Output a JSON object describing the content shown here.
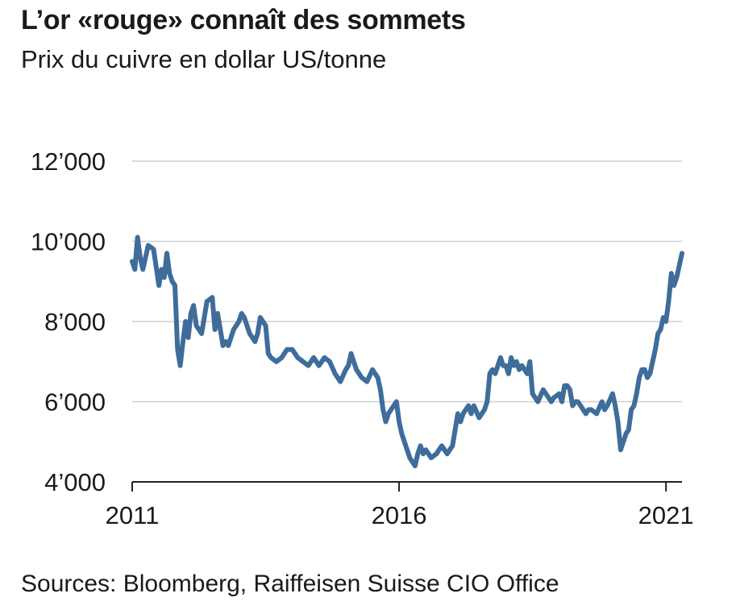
{
  "title": "L’or «rouge» connaît des sommets",
  "subtitle": "Prix du cuivre en dollar US/tonne",
  "source": "Sources: Bloomberg, Raiffeisen Suisse CIO Office",
  "colors": {
    "line": "#3f6d9b",
    "grid": "#cfcfcf",
    "axis": "#222222"
  },
  "chart_data": {
    "type": "line",
    "title": "L’or «rouge» connaît des sommets",
    "subtitle": "Prix du cuivre en dollar US/tonne",
    "xlabel": "",
    "ylabel": "",
    "x_ticks": [
      {
        "value": 2011,
        "label": "2011"
      },
      {
        "value": 2016,
        "label": "2016"
      },
      {
        "value": 2021,
        "label": "2021"
      }
    ],
    "y_ticks": [
      {
        "value": 4000,
        "label": "4’000"
      },
      {
        "value": 6000,
        "label": "6’000"
      },
      {
        "value": 8000,
        "label": "8’000"
      },
      {
        "value": 10000,
        "label": "10’000"
      },
      {
        "value": 12000,
        "label": "12’000"
      }
    ],
    "xlim": [
      2011,
      2021.3
    ],
    "ylim": [
      4000,
      12000
    ],
    "grid": "horizontal",
    "series": [
      {
        "x": [
          2011.0,
          2011.05,
          2011.1,
          2011.15,
          2011.2,
          2011.3,
          2011.4,
          2011.5,
          2011.55,
          2011.6,
          2011.65,
          2011.7,
          2011.75,
          2011.8,
          2011.85,
          2011.9,
          2011.95,
          2012.0,
          2012.05,
          2012.1,
          2012.15,
          2012.2,
          2012.3,
          2012.4,
          2012.5,
          2012.55,
          2012.6,
          2012.65,
          2012.7,
          2012.75,
          2012.8,
          2012.9,
          2013.0,
          2013.05,
          2013.1,
          2013.2,
          2013.3,
          2013.35,
          2013.4,
          2013.45,
          2013.5,
          2013.55,
          2013.6,
          2013.7,
          2013.8,
          2013.9,
          2014.0,
          2014.1,
          2014.2,
          2014.3,
          2014.4,
          2014.5,
          2014.55,
          2014.6,
          2014.7,
          2014.8,
          2014.9,
          2015.0,
          2015.05,
          2015.1,
          2015.2,
          2015.3,
          2015.4,
          2015.5,
          2015.55,
          2015.6,
          2015.65,
          2015.7,
          2015.75,
          2015.8,
          2015.85,
          2015.9,
          2015.95,
          2016.0,
          2016.05,
          2016.1,
          2016.15,
          2016.2,
          2016.25,
          2016.3,
          2016.35,
          2016.4,
          2016.45,
          2016.5,
          2016.6,
          2016.7,
          2016.8,
          2016.85,
          2016.9,
          2017.0,
          2017.1,
          2017.15,
          2017.2,
          2017.25,
          2017.3,
          2017.35,
          2017.4,
          2017.5,
          2017.6,
          2017.65,
          2017.7,
          2017.75,
          2017.8,
          2017.85,
          2017.9,
          2017.95,
          2018.0,
          2018.05,
          2018.1,
          2018.15,
          2018.2,
          2018.25,
          2018.3,
          2018.35,
          2018.4,
          2018.45,
          2018.5,
          2018.55,
          2018.6,
          2018.7,
          2018.8,
          2018.85,
          2018.9,
          2019.0,
          2019.05,
          2019.1,
          2019.15,
          2019.2,
          2019.25,
          2019.3,
          2019.35,
          2019.4,
          2019.5,
          2019.55,
          2019.6,
          2019.7,
          2019.8,
          2019.85,
          2019.9,
          2020.0,
          2020.05,
          2020.1,
          2020.15,
          2020.2,
          2020.25,
          2020.3,
          2020.35,
          2020.4,
          2020.45,
          2020.5,
          2020.55,
          2020.6,
          2020.65,
          2020.7,
          2020.75,
          2020.8,
          2020.85,
          2020.9,
          2020.95,
          2021.0,
          2021.05,
          2021.1,
          2021.15,
          2021.2,
          2021.25,
          2021.3
        ],
        "values": [
          9500,
          9300,
          10100,
          9600,
          9300,
          9900,
          9800,
          8900,
          9300,
          9100,
          9700,
          9200,
          9000,
          8900,
          7300,
          6900,
          7500,
          8000,
          7600,
          8200,
          8400,
          7900,
          7700,
          8500,
          8600,
          7800,
          8200,
          7800,
          7400,
          7500,
          7400,
          7800,
          8000,
          8200,
          8100,
          7700,
          7500,
          7700,
          8100,
          8000,
          7900,
          7200,
          7100,
          7000,
          7100,
          7300,
          7300,
          7100,
          7000,
          6900,
          7100,
          6900,
          7000,
          7100,
          7000,
          6700,
          6500,
          6800,
          6900,
          7200,
          6800,
          6600,
          6500,
          6800,
          6700,
          6600,
          6300,
          5800,
          5500,
          5700,
          5800,
          5900,
          6000,
          5500,
          5200,
          5000,
          4800,
          4600,
          4500,
          4400,
          4700,
          4900,
          4700,
          4800,
          4600,
          4700,
          4900,
          4800,
          4700,
          4900,
          5700,
          5500,
          5700,
          5800,
          5900,
          5700,
          5900,
          5600,
          5800,
          6000,
          6700,
          6800,
          6700,
          6900,
          7100,
          6900,
          6900,
          6700,
          7100,
          6900,
          7000,
          6800,
          6900,
          6800,
          6700,
          7000,
          6200,
          6100,
          6000,
          6300,
          6100,
          6000,
          6100,
          6200,
          6000,
          6400,
          6400,
          6300,
          5900,
          6000,
          6000,
          5900,
          5700,
          5800,
          5800,
          5700,
          6000,
          5800,
          5900,
          6200,
          5900,
          5500,
          4800,
          5000,
          5200,
          5300,
          5800,
          5900,
          6200,
          6600,
          6800,
          6800,
          6600,
          6700,
          7000,
          7300,
          7700,
          7800,
          8100,
          8000,
          8500,
          9200,
          8900,
          9100,
          9400,
          9700
        ]
      }
    ]
  }
}
